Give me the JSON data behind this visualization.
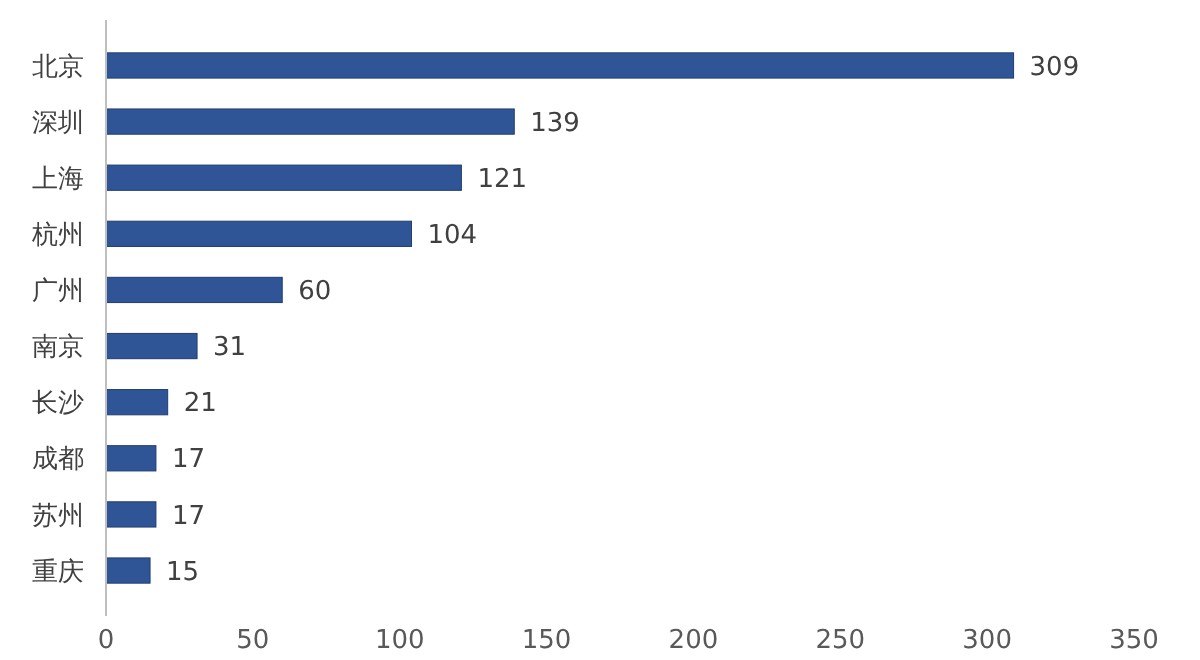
{
  "chart_data": {
    "type": "bar",
    "orientation": "horizontal",
    "categories": [
      "北京",
      "深圳",
      "上海",
      "杭州",
      "广州",
      "南京",
      "长沙",
      "成都",
      "苏州",
      "重庆"
    ],
    "values": [
      309,
      139,
      121,
      104,
      60,
      31,
      21,
      17,
      17,
      15
    ],
    "color": "#2f5597",
    "xlim": [
      0,
      350
    ],
    "xticks": [
      0,
      50,
      100,
      150,
      200,
      250,
      300,
      350
    ],
    "data_labels": true,
    "grid": false
  }
}
